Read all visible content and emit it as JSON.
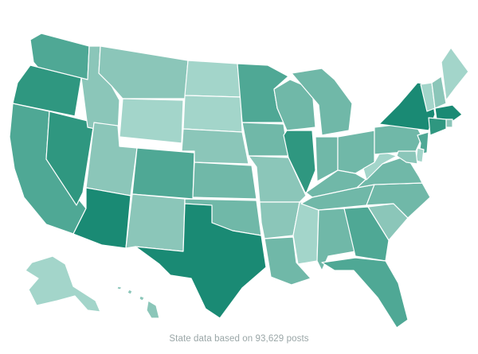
{
  "map": {
    "footnote": "State data based on 93,629 posts",
    "palette": {
      "1": "#a3d5ca",
      "2": "#8bc6b9",
      "3": "#70b8a8",
      "4": "#4fa895",
      "5": "#2f9780",
      "6": "#1a8a74"
    },
    "state_levels": {
      "WA": 4,
      "OR": 5,
      "CA": 4,
      "NV": 5,
      "ID": 2,
      "MT": 2,
      "WY": 1,
      "UT": 2,
      "AZ": 6,
      "CO": 4,
      "NM": 2,
      "ND": 1,
      "SD": 1,
      "NE": 2,
      "KS": 3,
      "OK": 3,
      "TX": 6,
      "MN": 4,
      "IA": 3,
      "MO": 2,
      "AR": 2,
      "LA": 3,
      "WI": 3,
      "IL": 5,
      "MS": 1,
      "MI": 3,
      "IN": 3,
      "OH": 3,
      "KY": 3,
      "TN": 3,
      "AL": 3,
      "GA": 4,
      "FL": 4,
      "SC": 2,
      "NC": 3,
      "VA": 3,
      "WV": 1,
      "PA": 3,
      "NY": 6,
      "VT": 1,
      "NH": 2,
      "ME": 1,
      "MA": 6,
      "RI": 2,
      "CT": 5,
      "NJ": 4,
      "DE": 1,
      "MD": 2,
      "AK": 1,
      "HI": 2
    }
  }
}
